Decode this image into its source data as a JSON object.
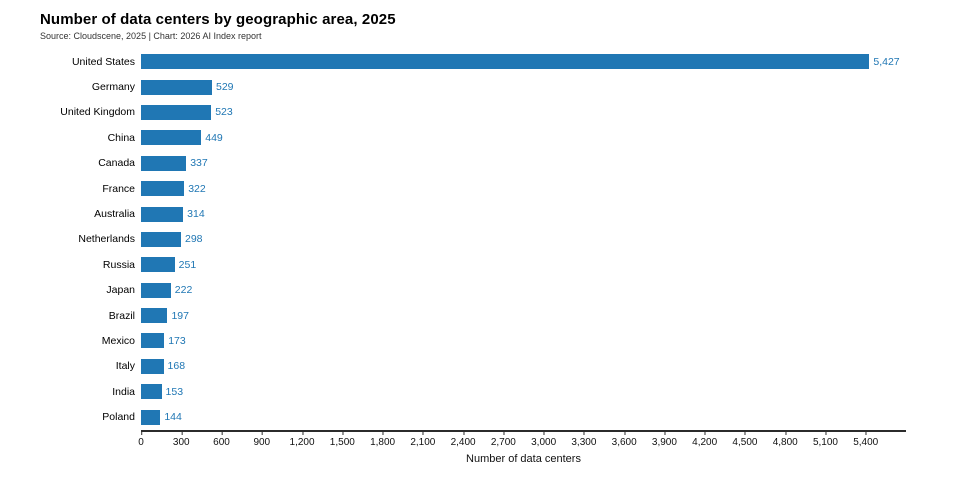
{
  "header": {
    "title": "Number of data centers by geographic area, 2025",
    "source": "Source: Cloudscene, 2025 | Chart: 2026 AI Index report"
  },
  "chart_data": {
    "type": "bar",
    "orientation": "horizontal",
    "title": "Number of data centers by geographic area, 2025",
    "source": "Source: Cloudscene, 2025 | Chart: 2026 AI Index report",
    "xlabel": "Number of data centers",
    "categories": [
      "United States",
      "Germany",
      "United Kingdom",
      "China",
      "Canada",
      "France",
      "Australia",
      "Netherlands",
      "Russia",
      "Japan",
      "Brazil",
      "Mexico",
      "Italy",
      "India",
      "Poland"
    ],
    "values": [
      5427,
      529,
      523,
      449,
      337,
      322,
      314,
      298,
      251,
      222,
      197,
      173,
      168,
      153,
      144
    ],
    "value_labels": [
      "5,427",
      "529",
      "523",
      "449",
      "337",
      "322",
      "314",
      "298",
      "251",
      "222",
      "197",
      "173",
      "168",
      "153",
      "144"
    ],
    "xlim": [
      0,
      5700
    ],
    "tick_values": [
      0,
      300,
      600,
      900,
      1200,
      1500,
      1800,
      2100,
      2400,
      2700,
      3000,
      3300,
      3600,
      3900,
      4200,
      4500,
      4800,
      5100,
      5400
    ],
    "tick_labels": [
      "0",
      "300",
      "600",
      "900",
      "1,200",
      "1,500",
      "1,800",
      "2,100",
      "2,400",
      "2,700",
      "3,000",
      "3,300",
      "3,600",
      "3,900",
      "4,200",
      "4,500",
      "4,800",
      "5,100",
      "5,400"
    ],
    "bar_color": "#2077b4",
    "value_label_color": "#2077b4",
    "grid": false,
    "legend": false
  }
}
